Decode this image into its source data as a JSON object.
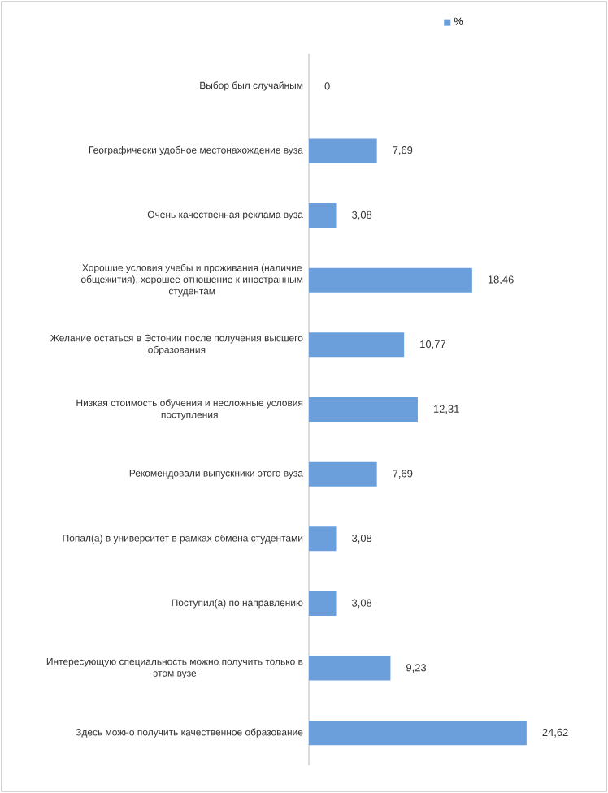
{
  "chart_data": {
    "type": "bar",
    "orientation": "horizontal",
    "legend": "top",
    "categories": [
      "Выбор был случайным",
      "Географически удобное местонахождение вуза",
      "Очень качественная реклама вуза",
      "Хорошие условия учебы и проживания (наличие общежития), хорошее отношение к иностранным студентам",
      "Желание остаться в Эстонии после получения высшего образования",
      "Низкая стоимость обучения и несложные условия поступления",
      "Рекомендовали выпускники этого вуза",
      "Попал(а) в университет в рамках обмена студентами",
      "Поступил(а) по направлению",
      "Интересующую специальность можно получить только в этом вузе",
      "Здесь можно получить качественное образование"
    ],
    "series": [
      {
        "name": "%",
        "color": "#6a9fdc",
        "values": [
          0,
          7.69,
          3.08,
          18.46,
          10.77,
          12.31,
          7.69,
          3.08,
          3.08,
          9.23,
          24.62
        ],
        "value_labels": [
          "0",
          "7,69",
          "3,08",
          "18,46",
          "10,77",
          "12,31",
          "7,69",
          "3,08",
          "3,08",
          "9,23",
          "24,62"
        ]
      }
    ]
  }
}
